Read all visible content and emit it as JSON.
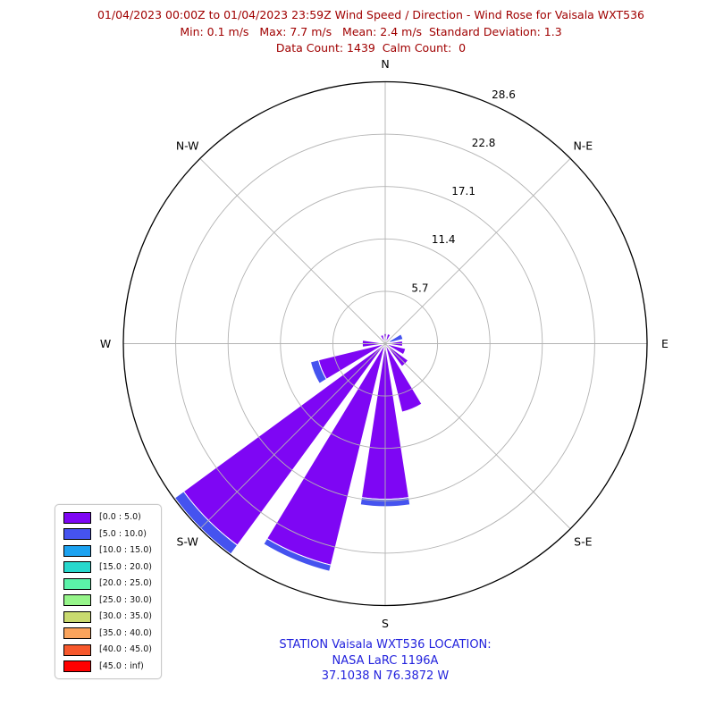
{
  "header": {
    "title": "01/04/2023 00:00Z to 01/04/2023 23:59Z Wind Speed / Direction - Wind Rose for Vaisala WXT536",
    "stats": "Min: 0.1 m/s   Max: 7.7 m/s   Mean: 2.4 m/s  Standard Deviation: 1.3",
    "counts": "Data Count: 1439  Calm Count:  0",
    "color": "#a00000"
  },
  "footer": {
    "line1": "STATION Vaisala WXT536 LOCATION:",
    "line2": "NASA LaRC 1196A",
    "line3": "37.1038 N 76.3872 W",
    "color": "#2323dd"
  },
  "chart_data": {
    "type": "windrose-polar-stacked-bar",
    "units": "percent of observations",
    "rmax": 28.6,
    "ring_fractions": [
      0.2,
      0.4,
      0.6,
      0.8,
      1.0
    ],
    "ring_labels": [
      "5.7",
      "11.4",
      "17.1",
      "22.8",
      "28.6"
    ],
    "ring_label_angle_deg": 22.5,
    "grid_color": "#b3b3b3",
    "outline_color": "#000000",
    "petal_width_deg": 17.5,
    "compass_labels": [
      {
        "label": "N",
        "deg": 0
      },
      {
        "label": "N-E",
        "deg": 45
      },
      {
        "label": "E",
        "deg": 90
      },
      {
        "label": "S-E",
        "deg": 135
      },
      {
        "label": "S",
        "deg": 180
      },
      {
        "label": "S-W",
        "deg": 225
      },
      {
        "label": "W",
        "deg": 270
      },
      {
        "label": "N-W",
        "deg": 315
      }
    ],
    "speed_bins": [
      {
        "label": "[0.0 : 5.0)",
        "color": "#7e06f4"
      },
      {
        "label": "[5.0 : 10.0)",
        "color": "#4553ef"
      },
      {
        "label": "[10.0 : 15.0)",
        "color": "#1ca2f0"
      },
      {
        "label": "[15.0 : 20.0)",
        "color": "#27d8cd"
      },
      {
        "label": "[20.0 : 25.0)",
        "color": "#5bf2a9"
      },
      {
        "label": "[25.0 : 30.0)",
        "color": "#96f58a"
      },
      {
        "label": "[30.0 : 35.0)",
        "color": "#c9da6f"
      },
      {
        "label": "[35.0 : 40.0)",
        "color": "#fba45c"
      },
      {
        "label": "[40.0 : 45.0)",
        "color": "#f7582c"
      },
      {
        "label": "[45.0 : inf)",
        "color": "#ff0000"
      }
    ],
    "petals": [
      {
        "dir": "N",
        "deg": 0.0,
        "values": [
          1.1
        ]
      },
      {
        "dir": "N-N-E",
        "deg": 22.5,
        "values": [
          1.1
        ]
      },
      {
        "dir": "E-N-E",
        "deg": 67.5,
        "values": [
          0.5,
          1.5
        ]
      },
      {
        "dir": "E",
        "deg": 90.0,
        "values": [
          1.9
        ]
      },
      {
        "dir": "E-S-E",
        "deg": 112.5,
        "values": [
          2.3
        ]
      },
      {
        "dir": "S-E",
        "deg": 135.0,
        "values": [
          3.1
        ]
      },
      {
        "dir": "S-S-E",
        "deg": 157.5,
        "values": [
          7.7
        ]
      },
      {
        "dir": "S",
        "deg": 180.0,
        "values": [
          17.0,
          0.8
        ]
      },
      {
        "dir": "S-S-W",
        "deg": 202.5,
        "values": [
          24.9,
          0.7
        ]
      },
      {
        "dir": "S-W",
        "deg": 225.0,
        "values": [
          27.3,
          1.2
        ]
      },
      {
        "dir": "W-S-W",
        "deg": 247.5,
        "values": [
          7.5,
          0.9
        ]
      },
      {
        "dir": "W",
        "deg": 270.0,
        "values": [
          2.5
        ]
      },
      {
        "dir": "N-N-W",
        "deg": 337.5,
        "values": [
          1.0
        ]
      }
    ]
  }
}
